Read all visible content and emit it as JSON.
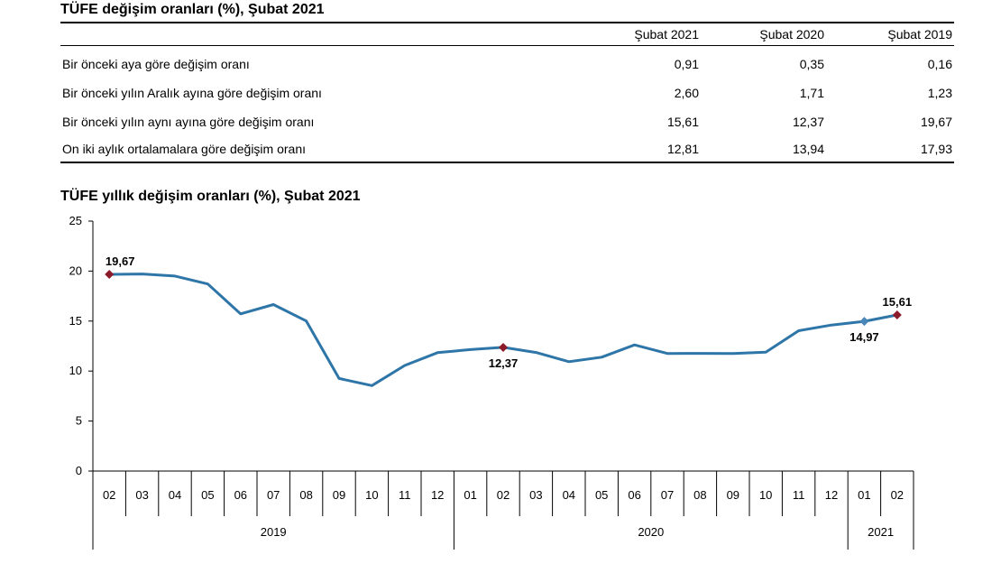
{
  "table": {
    "title": "TÜFE değişim oranları (%), Şubat 2021",
    "columns": [
      "Şubat 2021",
      "Şubat 2020",
      "Şubat 2019"
    ],
    "rows": [
      {
        "label": "Bir önceki aya göre değişim oranı",
        "values": [
          "0,91",
          "0,35",
          "0,16"
        ]
      },
      {
        "label": "Bir önceki yılın Aralık ayına göre değişim oranı",
        "values": [
          "2,60",
          "1,71",
          "1,23"
        ]
      },
      {
        "label": "Bir önceki yılın aynı ayına göre değişim oranı",
        "values": [
          "15,61",
          "12,37",
          "19,67"
        ]
      },
      {
        "label": "On iki aylık ortalamalara göre değişim oranı",
        "values": [
          "12,81",
          "13,94",
          "17,93"
        ]
      }
    ]
  },
  "chart_data": {
    "type": "line",
    "title": "TÜFE yıllık değişim oranları (%), Şubat 2021",
    "x": [
      "02",
      "03",
      "04",
      "05",
      "06",
      "07",
      "08",
      "09",
      "10",
      "11",
      "12",
      "01",
      "02",
      "03",
      "04",
      "05",
      "06",
      "07",
      "08",
      "09",
      "10",
      "11",
      "12",
      "01",
      "02"
    ],
    "year_groups": [
      {
        "label": "2019",
        "count": 11
      },
      {
        "label": "2020",
        "count": 12
      },
      {
        "label": "2021",
        "count": 2
      }
    ],
    "series": [
      {
        "values": [
          19.67,
          19.71,
          19.5,
          18.71,
          15.72,
          16.65,
          15.01,
          9.26,
          8.55,
          10.56,
          11.84,
          12.15,
          12.37,
          11.86,
          10.94,
          11.39,
          12.62,
          11.76,
          11.77,
          11.75,
          11.89,
          14.03,
          14.6,
          14.97,
          15.61
        ],
        "color": "#2e75a8"
      }
    ],
    "y_ticks": [
      "0",
      "5",
      "10",
      "15",
      "20",
      "25"
    ],
    "ylim": [
      0,
      25
    ],
    "annotations": [
      {
        "index": 0,
        "text": "19,67",
        "marker": "diamond",
        "color": "#8b1a2b",
        "placement": "above"
      },
      {
        "index": 12,
        "text": "12,37",
        "marker": "diamond",
        "color": "#8b1a2b",
        "placement": "below"
      },
      {
        "index": 23,
        "text": "14,97",
        "marker": "diamond",
        "color": "#4a86b8",
        "placement": "below"
      },
      {
        "index": 24,
        "text": "15,61",
        "marker": "diamond",
        "color": "#8b1a2b",
        "placement": "above"
      }
    ],
    "grid": false
  }
}
